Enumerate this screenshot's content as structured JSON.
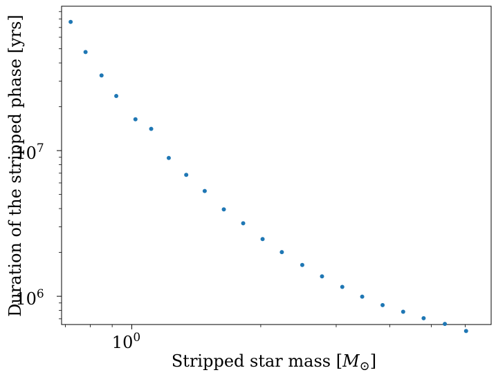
{
  "chart_data": {
    "type": "scatter",
    "xlabel": "Stripped star mass [M⊙]",
    "ylabel": "Duration of the stripped phase [yrs]",
    "xscale": "log",
    "yscale": "log",
    "xlim": [
      0.6857,
      6.9
    ],
    "ylim": [
      640000,
      98000000
    ],
    "x_tick_labels": [
      {
        "value": 1,
        "label": "10",
        "exponent": "0"
      }
    ],
    "y_tick_labels": [
      {
        "value": 1000000,
        "label": "10",
        "exponent": "6"
      },
      {
        "value": 10000000,
        "label": "10",
        "exponent": "7"
      }
    ],
    "grid": false,
    "marker_color": "#1f77b4",
    "series": [
      {
        "x": [
          0.72,
          0.78,
          0.85,
          0.92,
          1.02,
          1.11,
          1.22,
          1.34,
          1.48,
          1.64,
          1.82,
          2.02,
          2.24,
          2.5,
          2.78,
          3.1,
          3.45,
          3.85,
          4.3,
          4.8,
          5.38,
          6.03
        ],
        "y": [
          76500000,
          47500000,
          32800000,
          23700000,
          16400000,
          14100000,
          8900000,
          6820000,
          5280000,
          3950000,
          3170000,
          2470000,
          2010000,
          1640000,
          1370000,
          1160000,
          995000,
          870000,
          783000,
          707000,
          646000,
          578000
        ]
      }
    ]
  }
}
